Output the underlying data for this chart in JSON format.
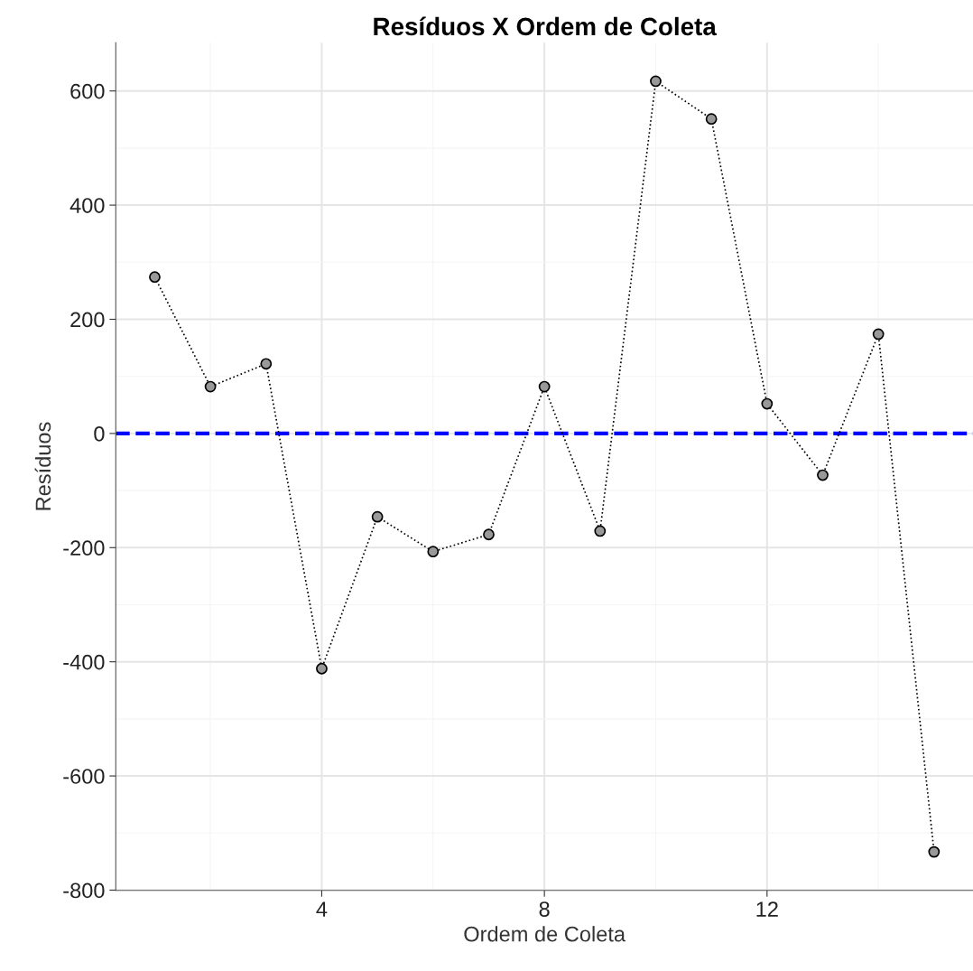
{
  "chart_data": {
    "type": "line",
    "title": "Resíduos X Ordem de Coleta",
    "xlabel": "Ordem de Coleta",
    "ylabel": "Resíduos",
    "x": [
      1,
      2,
      3,
      4,
      5,
      6,
      7,
      8,
      9,
      10,
      11,
      12,
      13,
      14,
      15
    ],
    "series": [
      {
        "color": "#000000",
        "values": [
          274,
          82,
          122,
          -412,
          -146,
          -207,
          -177,
          82,
          -171,
          617,
          551,
          52,
          -73,
          174,
          -733
        ]
      }
    ],
    "marker": "circle",
    "line_style": "dotted",
    "xlim": [
      0.3,
      15.7
    ],
    "xticks": [
      4,
      8,
      12
    ],
    "ylim": [
      -800.5,
      684.5
    ],
    "yticks": [
      -800,
      -600,
      -400,
      -200,
      0,
      200,
      400,
      600
    ],
    "grid": true,
    "ref_lines": [
      {
        "axis": "y",
        "value": 0,
        "label": null,
        "color": "#0000ff",
        "line_style": "dashed"
      }
    ]
  }
}
